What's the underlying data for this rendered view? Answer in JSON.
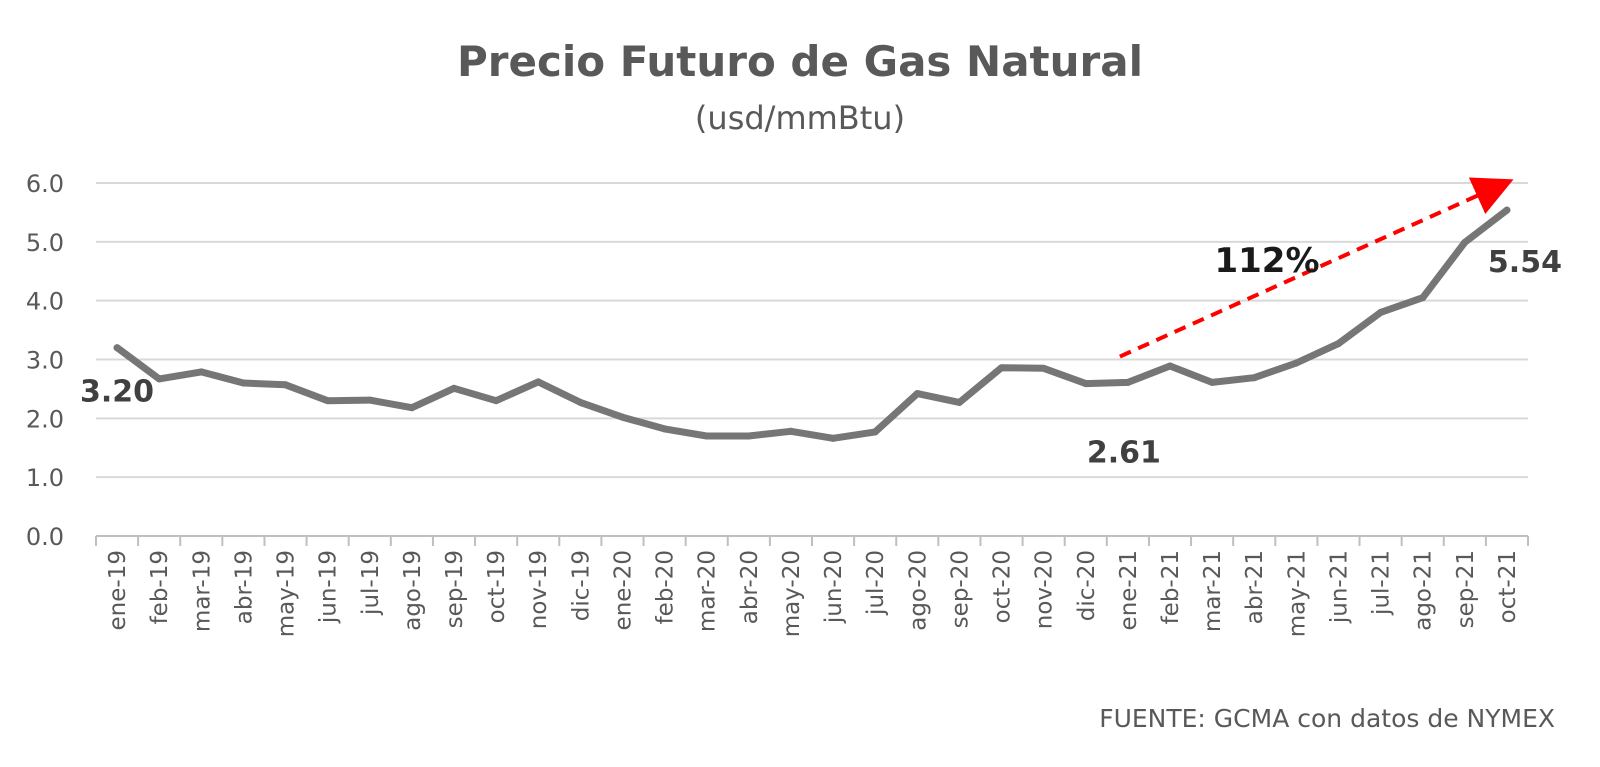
{
  "chart_data": {
    "type": "line",
    "title": "Precio Futuro de Gas Natural",
    "subtitle": "(usd/mmBtu)",
    "xlabel": "",
    "ylabel": "",
    "ylim": [
      0,
      6
    ],
    "yticks": [
      "0.0",
      "1.0",
      "2.0",
      "3.0",
      "4.0",
      "5.0",
      "6.0"
    ],
    "grid": true,
    "categories": [
      "ene-19",
      "feb-19",
      "mar-19",
      "abr-19",
      "may-19",
      "jun-19",
      "jul-19",
      "ago-19",
      "sep-19",
      "oct-19",
      "nov-19",
      "dic-19",
      "ene-20",
      "feb-20",
      "mar-20",
      "abr-20",
      "may-20",
      "jun-20",
      "jul-20",
      "ago-20",
      "sep-20",
      "oct-20",
      "nov-20",
      "dic-20",
      "ene-21",
      "feb-21",
      "mar-21",
      "abr-21",
      "may-21",
      "jun-21",
      "jul-21",
      "ago-21",
      "sep-21",
      "oct-21"
    ],
    "series": [
      {
        "values": [
          3.2,
          2.67,
          2.79,
          2.6,
          2.57,
          2.3,
          2.31,
          2.18,
          2.51,
          2.3,
          2.62,
          2.27,
          2.02,
          1.82,
          1.7,
          1.7,
          1.78,
          1.66,
          1.77,
          2.42,
          2.27,
          2.86,
          2.85,
          2.59,
          2.61,
          2.89,
          2.61,
          2.69,
          2.94,
          3.27,
          3.8,
          4.05,
          4.99,
          5.54
        ],
        "color": "#767676"
      }
    ],
    "data_labels": [
      {
        "category": "ene-19",
        "text": "3.20"
      },
      {
        "category": "ene-21",
        "text": "2.61"
      },
      {
        "category": "oct-21",
        "text": "5.54"
      }
    ],
    "annotations": [
      {
        "text": "112%",
        "arrow_from_category": "ene-21",
        "arrow_to_category": "oct-21",
        "arrow_color": "#ff0000",
        "arrow_style": "dashed"
      }
    ],
    "source": "FUENTE: GCMA con datos de NYMEX"
  }
}
